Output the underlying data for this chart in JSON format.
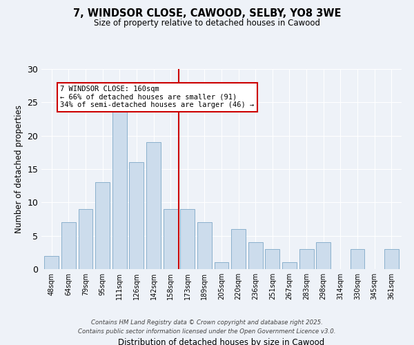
{
  "title": "7, WINDSOR CLOSE, CAWOOD, SELBY, YO8 3WE",
  "subtitle": "Size of property relative to detached houses in Cawood",
  "xlabel": "Distribution of detached houses by size in Cawood",
  "ylabel": "Number of detached properties",
  "bar_labels": [
    "48sqm",
    "64sqm",
    "79sqm",
    "95sqm",
    "111sqm",
    "126sqm",
    "142sqm",
    "158sqm",
    "173sqm",
    "189sqm",
    "205sqm",
    "220sqm",
    "236sqm",
    "251sqm",
    "267sqm",
    "283sqm",
    "298sqm",
    "314sqm",
    "330sqm",
    "345sqm",
    "361sqm"
  ],
  "bar_values": [
    2,
    7,
    9,
    13,
    25,
    16,
    19,
    9,
    9,
    7,
    1,
    6,
    4,
    3,
    1,
    3,
    4,
    0,
    3,
    0,
    3
  ],
  "bar_color": "#ccdcec",
  "bar_edge_color": "#8ab0cc",
  "vline_x": 7.5,
  "vline_color": "#cc0000",
  "annotation_title": "7 WINDSOR CLOSE: 160sqm",
  "annotation_line1": "← 66% of detached houses are smaller (91)",
  "annotation_line2": "34% of semi-detached houses are larger (46) →",
  "annotation_box_color": "#ffffff",
  "annotation_box_edge": "#cc0000",
  "ylim": [
    0,
    30
  ],
  "yticks": [
    0,
    5,
    10,
    15,
    20,
    25,
    30
  ],
  "bg_color": "#eef2f8",
  "grid_color": "#ffffff",
  "footnote1": "Contains HM Land Registry data © Crown copyright and database right 2025.",
  "footnote2": "Contains public sector information licensed under the Open Government Licence v3.0."
}
